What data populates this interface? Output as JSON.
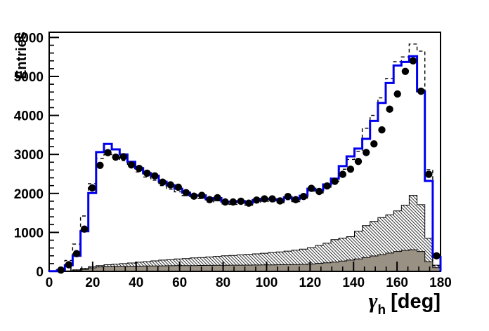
{
  "chart_data": {
    "type": "histogram-overlay",
    "ylabel": "Entries",
    "xlabel_parts": {
      "symbol": "γ",
      "subscript": "h",
      "unit": "[deg]"
    },
    "xlim": [
      0,
      180
    ],
    "ylim": [
      0,
      6133
    ],
    "xticks": [
      0,
      20,
      40,
      60,
      80,
      100,
      120,
      140,
      160,
      180
    ],
    "yticks": [
      0,
      1000,
      2000,
      3000,
      4000,
      5000,
      6000
    ],
    "x_minor_step": 5,
    "y_minor_step": 200,
    "bin_width_deg": 3.6,
    "n_bins": 50,
    "grid": false,
    "legend": "none",
    "colors": {
      "frame": "#000000",
      "solid_histogram": "#0000ee",
      "dashed_histogram": "#000000",
      "hatched_fill_lines": "#000000",
      "gray_fill": "#9a9185",
      "marker": "#000000"
    },
    "series": [
      {
        "name": "hatched-background-histogram",
        "style": "filled-hatch",
        "values": [
          0,
          0,
          15,
          40,
          80,
          120,
          150,
          170,
          185,
          200,
          215,
          235,
          250,
          270,
          290,
          300,
          320,
          330,
          345,
          355,
          370,
          385,
          400,
          410,
          425,
          435,
          450,
          465,
          485,
          500,
          520,
          545,
          570,
          610,
          665,
          725,
          815,
          855,
          890,
          1030,
          1175,
          1280,
          1380,
          1450,
          1550,
          1700,
          1950,
          1710,
          850,
          160
        ]
      },
      {
        "name": "gray-filled-background-histogram",
        "style": "filled-solid",
        "values": [
          0,
          0,
          5,
          20,
          50,
          90,
          115,
          125,
          130,
          130,
          132,
          135,
          138,
          140,
          142,
          145,
          147,
          150,
          150,
          152,
          155,
          157,
          158,
          160,
          160,
          162,
          163,
          165,
          167,
          170,
          172,
          175,
          180,
          190,
          205,
          220,
          240,
          265,
          290,
          320,
          355,
          395,
          430,
          470,
          510,
          540,
          555,
          510,
          250,
          95
        ]
      },
      {
        "name": "dashed-step-histogram",
        "style": "step-dashed",
        "values": [
          10,
          60,
          280,
          700,
          1420,
          2250,
          2900,
          3000,
          2950,
          2840,
          2690,
          2550,
          2420,
          2340,
          2200,
          2110,
          2040,
          1940,
          1870,
          1870,
          1780,
          1810,
          1730,
          1720,
          1740,
          1700,
          1770,
          1800,
          1790,
          1760,
          1840,
          1790,
          1880,
          2060,
          2010,
          2160,
          2310,
          2620,
          2870,
          3080,
          3670,
          4000,
          4450,
          4950,
          5380,
          5500,
          5830,
          5650,
          2610,
          140
        ]
      },
      {
        "name": "blue-step-histogram",
        "style": "step-solid",
        "values": [
          5,
          30,
          160,
          400,
          1030,
          2010,
          3060,
          3270,
          3130,
          3000,
          2810,
          2650,
          2520,
          2450,
          2300,
          2210,
          2120,
          2020,
          1940,
          1950,
          1850,
          1880,
          1790,
          1780,
          1800,
          1760,
          1830,
          1860,
          1850,
          1820,
          1900,
          1850,
          1940,
          2120,
          2080,
          2230,
          2380,
          2700,
          2950,
          3150,
          3400,
          3860,
          4320,
          4830,
          5280,
          5370,
          5520,
          4620,
          2320,
          365
        ]
      },
      {
        "name": "data-points",
        "style": "markers",
        "values": [
          null,
          35,
          170,
          455,
          1085,
          2140,
          2720,
          3045,
          2930,
          2940,
          2730,
          2640,
          2520,
          2450,
          2290,
          2220,
          2160,
          2020,
          1930,
          1950,
          1840,
          1890,
          1780,
          1780,
          1800,
          1750,
          1830,
          1860,
          1860,
          1810,
          1920,
          1840,
          1920,
          2130,
          2050,
          2190,
          2310,
          2490,
          2620,
          2820,
          3050,
          3270,
          3630,
          4160,
          4550,
          5130,
          5400,
          4620,
          2490,
          400
        ]
      }
    ]
  }
}
